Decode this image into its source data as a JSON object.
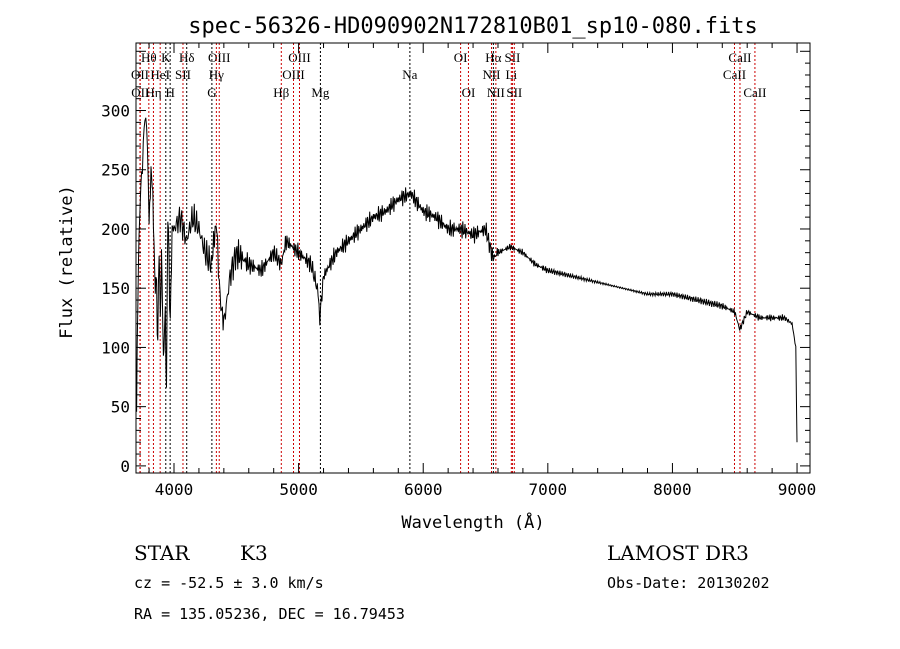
{
  "chart_data": {
    "type": "line",
    "title": "spec-56326-HD090902N172810B01_sp10-080.fits",
    "xlabel": "Wavelength (Å)",
    "ylabel": "Flux (relative)",
    "xlim": [
      3695,
      9104
    ],
    "ylim": [
      -6,
      357
    ],
    "xticks": [
      4000,
      5000,
      6000,
      7000,
      8000,
      9000
    ],
    "yticks": [
      0,
      50,
      100,
      150,
      200,
      250,
      300
    ],
    "grid": false,
    "series": [
      {
        "name": "spectrum",
        "x": [
          3700,
          3710,
          3720,
          3740,
          3760,
          3780,
          3800,
          3815,
          3830,
          3845,
          3860,
          3870,
          3880,
          3890,
          3900,
          3915,
          3930,
          3940,
          3950,
          3960,
          3970,
          3985,
          4000,
          4050,
          4100,
          4150,
          4200,
          4250,
          4300,
          4330,
          4350,
          4370,
          4400,
          4450,
          4500,
          4600,
          4700,
          4800,
          4860,
          4900,
          5000,
          5100,
          5150,
          5170,
          5200,
          5300,
          5400,
          5500,
          5600,
          5700,
          5800,
          5900,
          6000,
          6100,
          6200,
          6300,
          6400,
          6500,
          6560,
          6600,
          6700,
          6800,
          6900,
          7000,
          7200,
          7400,
          7600,
          7800,
          8000,
          8200,
          8400,
          8500,
          8540,
          8600,
          8700,
          8800,
          8900,
          8960,
          8990,
          9000
        ],
        "y": [
          40,
          150,
          190,
          250,
          280,
          300,
          200,
          250,
          230,
          160,
          150,
          100,
          190,
          120,
          180,
          90,
          130,
          60,
          220,
          170,
          120,
          200,
          200,
          210,
          190,
          210,
          200,
          180,
          170,
          200,
          190,
          140,
          120,
          160,
          180,
          170,
          165,
          180,
          170,
          190,
          180,
          170,
          150,
          125,
          160,
          180,
          190,
          200,
          210,
          215,
          225,
          230,
          215,
          210,
          200,
          200,
          195,
          200,
          175,
          180,
          185,
          180,
          170,
          165,
          160,
          155,
          150,
          145,
          145,
          140,
          135,
          130,
          115,
          130,
          125,
          125,
          125,
          120,
          100,
          20
        ]
      }
    ],
    "lines": [
      {
        "label": "Hθ",
        "wave": 3798,
        "row": 1,
        "color": "#cc0000"
      },
      {
        "label": "K",
        "wave": 3934,
        "row": 1,
        "color": "#000000"
      },
      {
        "label": "Hδ",
        "wave": 4102,
        "row": 1,
        "color": "#000000"
      },
      {
        "label": "OIII",
        "wave": 4363,
        "row": 1,
        "color": "#cc0000"
      },
      {
        "label": "OIII",
        "wave": 5007,
        "row": 1,
        "color": "#cc0000"
      },
      {
        "label": "OI",
        "wave": 6300,
        "row": 1,
        "color": "#cc0000"
      },
      {
        "label": "Hα",
        "wave": 6563,
        "row": 1,
        "color": "#000000"
      },
      {
        "label": "SII",
        "wave": 6716,
        "row": 1,
        "color": "#cc0000"
      },
      {
        "label": "CaII",
        "wave": 8542,
        "row": 1,
        "color": "#cc0000"
      },
      {
        "label": "OII",
        "wave": 3727,
        "row": 2,
        "color": "#cc0000"
      },
      {
        "label": "HeI",
        "wave": 3889,
        "row": 2,
        "color": "#cc0000"
      },
      {
        "label": "SII",
        "wave": 4072,
        "row": 2,
        "color": "#cc0000"
      },
      {
        "label": "Hγ",
        "wave": 4340,
        "row": 2,
        "color": "#cc0000"
      },
      {
        "label": "OIII",
        "wave": 4959,
        "row": 2,
        "color": "#cc0000"
      },
      {
        "label": "Na",
        "wave": 5893,
        "row": 2,
        "color": "#000000"
      },
      {
        "label": "NII",
        "wave": 6548,
        "row": 2,
        "color": "#cc0000"
      },
      {
        "label": "Li",
        "wave": 6707,
        "row": 2,
        "color": "#cc0000"
      },
      {
        "label": "CaII",
        "wave": 8498,
        "row": 2,
        "color": "#cc0000"
      },
      {
        "label": "OII",
        "wave": 3729,
        "row": 3,
        "color": "#cc0000"
      },
      {
        "label": "Hη",
        "wave": 3835,
        "row": 3,
        "color": "#cc0000"
      },
      {
        "label": "H",
        "wave": 3969,
        "row": 3,
        "color": "#000000"
      },
      {
        "label": "G",
        "wave": 4304,
        "row": 3,
        "color": "#000000"
      },
      {
        "label": "Hβ",
        "wave": 4861,
        "row": 3,
        "color": "#cc0000"
      },
      {
        "label": "Mg",
        "wave": 5175,
        "row": 3,
        "color": "#000000"
      },
      {
        "label": "OI",
        "wave": 6363,
        "row": 3,
        "color": "#cc0000"
      },
      {
        "label": "NII",
        "wave": 6583,
        "row": 3,
        "color": "#cc0000"
      },
      {
        "label": "SII",
        "wave": 6731,
        "row": 3,
        "color": "#cc0000"
      },
      {
        "label": "CaII",
        "wave": 8662,
        "row": 3,
        "color": "#cc0000"
      }
    ]
  },
  "info": {
    "class": "STAR",
    "subclass": "K3",
    "cz": "cz = -52.5 ± 3.0 km/s",
    "radec": "RA = 135.05236, DEC =  16.79453",
    "survey": "LAMOST DR3",
    "obsdate": "Obs-Date: 20130202"
  }
}
